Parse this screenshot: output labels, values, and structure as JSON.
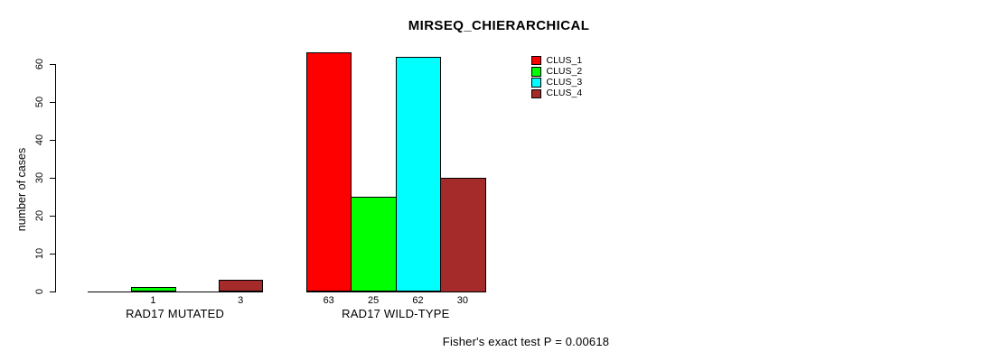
{
  "title": "MIRSEQ_CHIERARCHICAL",
  "y_axis_label": "number of cases",
  "annotation": "Fisher's exact test P = 0.00618",
  "legend": {
    "items": [
      {
        "label": "CLUS_1",
        "color": "#FF0000"
      },
      {
        "label": "CLUS_2",
        "color": "#00FF00"
      },
      {
        "label": "CLUS_3",
        "color": "#00FFFF"
      },
      {
        "label": "CLUS_4",
        "color": "#A52A2A"
      }
    ]
  },
  "chart_data": {
    "type": "bar",
    "title": "MIRSEQ_CHIERARCHICAL",
    "xlabel": "",
    "ylabel": "number of cases",
    "ylim": [
      0,
      60
    ],
    "yticks": [
      0,
      10,
      20,
      30,
      40,
      50,
      60
    ],
    "grid": false,
    "legend_position": "top-right",
    "categories": [
      "RAD17 MUTATED",
      "RAD17 WILD-TYPE"
    ],
    "series": [
      {
        "name": "CLUS_1",
        "color": "#FF0000",
        "values": [
          0,
          63
        ]
      },
      {
        "name": "CLUS_2",
        "color": "#00FF00",
        "values": [
          1,
          25
        ]
      },
      {
        "name": "CLUS_3",
        "color": "#00FFFF",
        "values": [
          0,
          62
        ]
      },
      {
        "name": "CLUS_4",
        "color": "#A52A2A",
        "values": [
          3,
          30
        ]
      }
    ],
    "value_labels": [
      [
        "",
        "1",
        "",
        "3"
      ],
      [
        "63",
        "25",
        "62",
        "30"
      ]
    ],
    "footnote": "Fisher's exact test P = 0.00618"
  }
}
